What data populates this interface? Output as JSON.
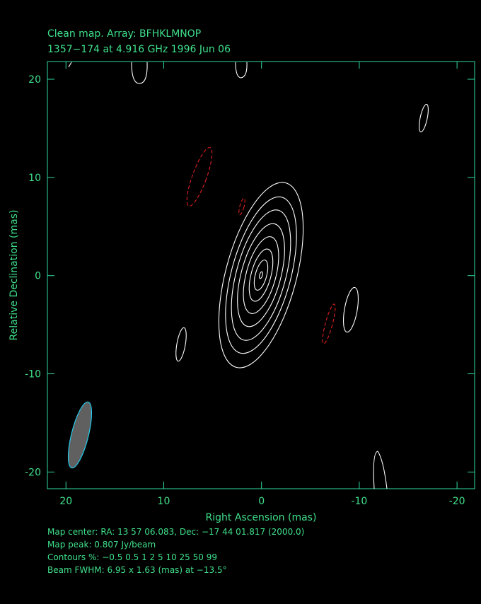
{
  "chart_data": {
    "type": "contour",
    "title": "Clean map.  Array: BFHKLMNOP",
    "subtitle": "1357−174 at 4.916 GHz 1996 Jun 06",
    "x_label": "Right Ascension  (mas)",
    "y_label": "Relative Declination  (mas)",
    "xlim": [
      21.9,
      -21.8
    ],
    "ylim": [
      -21.7,
      21.8
    ],
    "xticks": [
      20,
      10,
      0,
      -10,
      -20
    ],
    "yticks": [
      -20,
      -10,
      0,
      10,
      20
    ],
    "annotations": [
      "Map center:  RA: 13 57 06.083,  Dec: −17 44 01.817 (2000.0)",
      "Map peak: 0.807 Jy/beam",
      "Contours %: −0.5 0.5 1 2 5 10 25 50 99",
      "Beam FWHM: 6.95 x 1.63 (mas) at −13.5°"
    ]
  }
}
